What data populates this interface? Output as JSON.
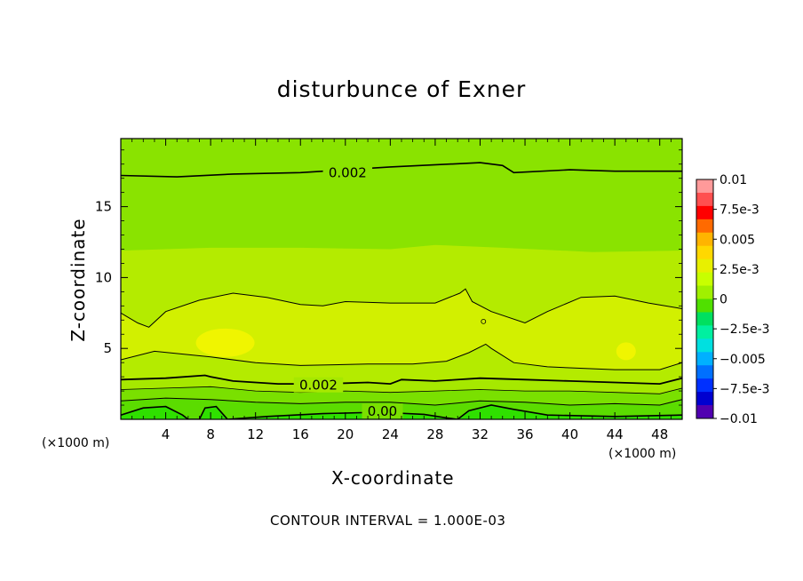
{
  "title": "disturbunce of Exner",
  "footer_text": "CONTOUR INTERVAL = 1.000E-03",
  "chart_data": {
    "type": "contour",
    "title": "disturbunce of Exner",
    "xlabel": "X-coordinate",
    "ylabel": "Z-coordinate",
    "x_unit": "(×1000 m)",
    "x_unit_right": "(×1000 m)",
    "xlim": [
      0,
      50
    ],
    "ylim": [
      0,
      19.8
    ],
    "x_ticks": [
      4,
      8,
      12,
      16,
      20,
      24,
      28,
      32,
      36,
      40,
      44,
      48
    ],
    "y_ticks": [
      5,
      10,
      15
    ],
    "contour_interval": 0.001,
    "contour_labels": [
      {
        "text": "0.002",
        "x": 20.2,
        "z": 17.4
      },
      {
        "text": "0.002",
        "x": 17.6,
        "z": 2.4
      },
      {
        "text": "0.00",
        "x": 23.3,
        "z": 0.55
      }
    ],
    "colorbar": {
      "labels": [
        "0.01",
        "7.5e-3",
        "0.005",
        "2.5e-3",
        "0",
        "−2.5e-3",
        "−0.005",
        "−7.5e-3",
        "−0.01"
      ],
      "colors": [
        "#ff9a9a",
        "#ff5050",
        "#ff0000",
        "#ff6a00",
        "#ffb400",
        "#ffd800",
        "#e8f000",
        "#c8ff00",
        "#a0f000",
        "#50e000",
        "#00e060",
        "#00f0a0",
        "#00e0e0",
        "#00b0ff",
        "#0070ff",
        "#0030ff",
        "#0000d0",
        "#5000b0"
      ]
    },
    "field_colors": {
      "upper_band": "#8ae300",
      "mid_band": "#b4eb00",
      "core": "#d2f000",
      "max_patch": "#f0f500",
      "lower_1": "#a6e800",
      "lower_2": "#7ae000",
      "surface": "#2fe000"
    }
  }
}
